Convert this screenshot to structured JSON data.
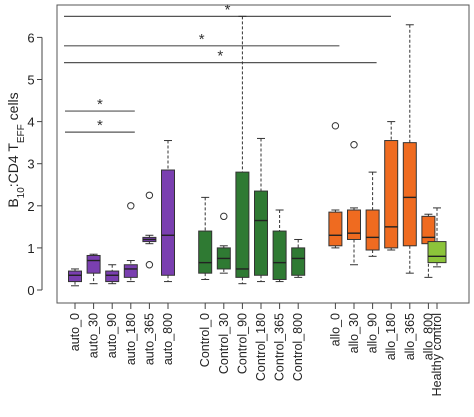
{
  "chart_data": {
    "type": "box",
    "ylabel": {
      "main": "B",
      "sub1": "10",
      "mid": ":CD4 T",
      "sub2": "EFF",
      "end": " cells"
    },
    "ylim": [
      0,
      6.7
    ],
    "yticks": [
      0,
      1,
      2,
      3,
      4,
      5,
      6
    ],
    "groups": [
      {
        "name": "auto",
        "color": "#7a3fb0"
      },
      {
        "name": "Control",
        "color": "#2f7a33"
      },
      {
        "name": "allo",
        "color": "#ef6b20"
      },
      {
        "name": "Healthy control",
        "color": "#8cc43a"
      }
    ],
    "boxes": [
      {
        "label": "auto_0",
        "group": 0,
        "x": 1,
        "whisker_low": 0.1,
        "q1": 0.2,
        "median": 0.35,
        "q3": 0.45,
        "whisker_high": 0.5,
        "outliers": []
      },
      {
        "label": "auto_30",
        "group": 0,
        "x": 2,
        "whisker_low": 0.15,
        "q1": 0.4,
        "median": 0.7,
        "q3": 0.82,
        "whisker_high": 0.85,
        "outliers": []
      },
      {
        "label": "auto_90",
        "group": 0,
        "x": 3,
        "whisker_low": 0.15,
        "q1": 0.2,
        "median": 0.35,
        "q3": 0.45,
        "whisker_high": 0.6,
        "outliers": []
      },
      {
        "label": "auto_180",
        "group": 0,
        "x": 4,
        "whisker_low": 0.2,
        "q1": 0.3,
        "median": 0.5,
        "q3": 0.6,
        "whisker_high": 0.7,
        "outliers": [
          2.0
        ]
      },
      {
        "label": "auto_365",
        "group": 0,
        "x": 5,
        "whisker_low": 1.1,
        "q1": 1.15,
        "median": 1.2,
        "q3": 1.25,
        "whisker_high": 1.3,
        "outliers": [
          0.6,
          2.25
        ]
      },
      {
        "label": "auto_800",
        "group": 0,
        "x": 6,
        "whisker_low": 0.2,
        "q1": 0.35,
        "median": 1.3,
        "q3": 2.85,
        "whisker_high": 3.55,
        "outliers": []
      },
      {
        "label": "Control_0",
        "group": 1,
        "x": 8,
        "whisker_low": 0.25,
        "q1": 0.4,
        "median": 0.65,
        "q3": 1.4,
        "whisker_high": 2.2,
        "outliers": []
      },
      {
        "label": "Control_30",
        "group": 1,
        "x": 9,
        "whisker_low": 0.4,
        "q1": 0.5,
        "median": 0.75,
        "q3": 1.0,
        "whisker_high": 1.05,
        "outliers": [
          1.75
        ]
      },
      {
        "label": "Control_90",
        "group": 1,
        "x": 10,
        "whisker_low": 0.15,
        "q1": 0.3,
        "median": 0.5,
        "q3": 2.8,
        "whisker_high": 6.5,
        "outliers": []
      },
      {
        "label": "Control_180",
        "group": 1,
        "x": 11,
        "whisker_low": 0.2,
        "q1": 0.35,
        "median": 1.65,
        "q3": 2.35,
        "whisker_high": 3.6,
        "outliers": []
      },
      {
        "label": "Control_365",
        "group": 1,
        "x": 12,
        "whisker_low": 0.2,
        "q1": 0.25,
        "median": 0.65,
        "q3": 1.4,
        "whisker_high": 1.9,
        "outliers": []
      },
      {
        "label": "Control_800",
        "group": 1,
        "x": 13,
        "whisker_low": 0.3,
        "q1": 0.35,
        "median": 0.75,
        "q3": 1.0,
        "whisker_high": 1.2,
        "outliers": []
      },
      {
        "label": "allo_0",
        "group": 2,
        "x": 15,
        "whisker_low": 1.0,
        "q1": 1.05,
        "median": 1.3,
        "q3": 1.85,
        "whisker_high": 1.9,
        "outliers": [
          3.9
        ]
      },
      {
        "label": "allo_30",
        "group": 2,
        "x": 16,
        "whisker_low": 0.6,
        "q1": 1.2,
        "median": 1.35,
        "q3": 1.9,
        "whisker_high": 1.95,
        "outliers": [
          3.45
        ]
      },
      {
        "label": "allo_90",
        "group": 2,
        "x": 17,
        "whisker_low": 0.8,
        "q1": 0.95,
        "median": 1.25,
        "q3": 1.9,
        "whisker_high": 2.8,
        "outliers": []
      },
      {
        "label": "allo_180",
        "group": 2,
        "x": 18,
        "whisker_low": 0.95,
        "q1": 1.0,
        "median": 1.5,
        "q3": 3.55,
        "whisker_high": 4.0,
        "outliers": []
      },
      {
        "label": "allo_365",
        "group": 2,
        "x": 19,
        "whisker_low": 0.4,
        "q1": 1.05,
        "median": 2.2,
        "q3": 3.5,
        "whisker_high": 6.3,
        "outliers": []
      },
      {
        "label": "allo_800",
        "group": 2,
        "x": 20,
        "whisker_low": 0.3,
        "q1": 1.1,
        "median": 1.25,
        "q3": 1.75,
        "whisker_high": 1.8,
        "outliers": []
      },
      {
        "label": "Healthy control",
        "group": 3,
        "x": 22.5,
        "whisker_low": 0.55,
        "q1": 0.65,
        "median": 0.8,
        "q3": 1.15,
        "whisker_high": 1.95,
        "outliers": []
      }
    ],
    "significance": [
      {
        "from_x": 1,
        "to_x": 4,
        "y": 4.25,
        "label": "*"
      },
      {
        "from_x": 1,
        "to_x": 4,
        "y": 3.75,
        "label": "*"
      },
      {
        "from_x": 0,
        "to_x": 17,
        "y": 5.4,
        "label": "*"
      },
      {
        "from_x": 0,
        "to_x": 15,
        "y": 5.8,
        "label": "*"
      },
      {
        "from_x": 0,
        "to_x": 23,
        "y": 6.5,
        "label": "*"
      }
    ]
  }
}
